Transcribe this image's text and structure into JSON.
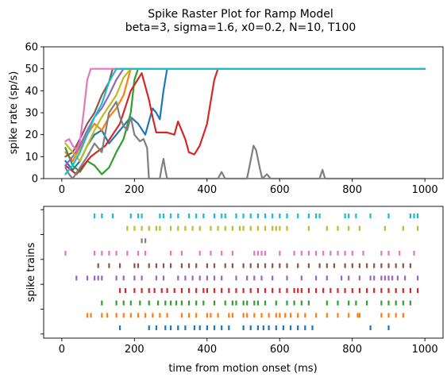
{
  "title_line1": "Spike Raster Plot for Ramp Model",
  "title_line2": "beta=3, sigma=1.6, x0=0.2, N=10, T100",
  "chart_data": [
    {
      "type": "line",
      "ylabel": "spike rate (sp/s)",
      "xlabel": "",
      "xlim": [
        -50,
        1050
      ],
      "ylim": [
        0,
        60
      ],
      "xticks": [
        "0",
        "200",
        "400",
        "600",
        "800",
        "1000"
      ],
      "yticks": [
        "0",
        "10",
        "20",
        "30",
        "40",
        "50",
        "60"
      ],
      "grid": false,
      "series": [
        {
          "color": "#1f77b4",
          "points": [
            [
              10,
              8
            ],
            [
              30,
              4
            ],
            [
              50,
              8
            ],
            [
              70,
              15
            ],
            [
              90,
              20
            ],
            [
              110,
              22
            ],
            [
              130,
              16
            ],
            [
              150,
              20
            ],
            [
              170,
              24
            ],
            [
              190,
              28
            ],
            [
              210,
              25
            ],
            [
              230,
              20
            ],
            [
              250,
              32
            ],
            [
              260,
              30
            ],
            [
              270,
              27
            ],
            [
              280,
              40
            ],
            [
              290,
              50
            ],
            [
              1000,
              50
            ]
          ]
        },
        {
          "color": "#ff7f0e",
          "points": [
            [
              10,
              12
            ],
            [
              30,
              8
            ],
            [
              50,
              14
            ],
            [
              70,
              20
            ],
            [
              90,
              25
            ],
            [
              110,
              22
            ],
            [
              130,
              28
            ],
            [
              150,
              32
            ],
            [
              170,
              38
            ],
            [
              190,
              50
            ],
            [
              1000,
              50
            ]
          ]
        },
        {
          "color": "#2ca02c",
          "points": [
            [
              10,
              14
            ],
            [
              30,
              6
            ],
            [
              50,
              3
            ],
            [
              70,
              8
            ],
            [
              90,
              6
            ],
            [
              110,
              2
            ],
            [
              130,
              5
            ],
            [
              150,
              12
            ],
            [
              170,
              18
            ],
            [
              190,
              30
            ],
            [
              200,
              45
            ],
            [
              210,
              50
            ],
            [
              1000,
              50
            ]
          ]
        },
        {
          "color": "#d62728",
          "points": [
            [
              10,
              6
            ],
            [
              40,
              2
            ],
            [
              80,
              10
            ],
            [
              120,
              15
            ],
            [
              160,
              25
            ],
            [
              190,
              40
            ],
            [
              220,
              48
            ],
            [
              240,
              36
            ],
            [
              250,
              28
            ],
            [
              260,
              21
            ],
            [
              290,
              21
            ],
            [
              310,
              20
            ],
            [
              320,
              26
            ],
            [
              340,
              18
            ],
            [
              350,
              12
            ],
            [
              365,
              11
            ],
            [
              380,
              15
            ],
            [
              390,
              20
            ],
            [
              400,
              25
            ],
            [
              410,
              35
            ],
            [
              420,
              45
            ],
            [
              430,
              50
            ],
            [
              1000,
              50
            ]
          ]
        },
        {
          "color": "#9467bd",
          "points": [
            [
              10,
              6
            ],
            [
              30,
              10
            ],
            [
              50,
              15
            ],
            [
              70,
              22
            ],
            [
              90,
              28
            ],
            [
              110,
              32
            ],
            [
              130,
              38
            ],
            [
              150,
              45
            ],
            [
              170,
              50
            ],
            [
              1000,
              50
            ]
          ]
        },
        {
          "color": "#8c564b",
          "points": [
            [
              10,
              10
            ],
            [
              30,
              12
            ],
            [
              50,
              18
            ],
            [
              70,
              25
            ],
            [
              90,
              30
            ],
            [
              110,
              38
            ],
            [
              130,
              44
            ],
            [
              140,
              50
            ],
            [
              1000,
              50
            ]
          ]
        },
        {
          "color": "#e377c2",
          "points": [
            [
              10,
              17
            ],
            [
              20,
              18
            ],
            [
              30,
              15
            ],
            [
              40,
              13
            ],
            [
              50,
              17
            ],
            [
              60,
              30
            ],
            [
              70,
              45
            ],
            [
              80,
              50
            ],
            [
              1000,
              50
            ]
          ]
        },
        {
          "color": "#7f7f7f",
          "points": [
            [
              10,
              5
            ],
            [
              20,
              2
            ],
            [
              30,
              0
            ],
            [
              50,
              5
            ],
            [
              70,
              10
            ],
            [
              90,
              16
            ],
            [
              110,
              12
            ],
            [
              130,
              30
            ],
            [
              150,
              35
            ],
            [
              160,
              28
            ],
            [
              170,
              24
            ],
            [
              180,
              22
            ],
            [
              190,
              28
            ],
            [
              200,
              20
            ],
            [
              215,
              17
            ],
            [
              225,
              18
            ],
            [
              235,
              14
            ],
            [
              240,
              0
            ],
            [
              270,
              0
            ],
            [
              275,
              5
            ],
            [
              280,
              9
            ],
            [
              285,
              4
            ],
            [
              290,
              0
            ],
            [
              430,
              0
            ],
            [
              440,
              3
            ],
            [
              450,
              0
            ],
            [
              510,
              0
            ],
            [
              520,
              8
            ],
            [
              528,
              15
            ],
            [
              535,
              13
            ],
            [
              545,
              5
            ],
            [
              552,
              0
            ],
            [
              565,
              2
            ],
            [
              575,
              0
            ],
            [
              710,
              0
            ],
            [
              718,
              4
            ],
            [
              725,
              0
            ],
            [
              1000,
              0
            ]
          ]
        },
        {
          "color": "#bcbd22",
          "points": [
            [
              10,
              16
            ],
            [
              30,
              12
            ],
            [
              50,
              8
            ],
            [
              70,
              15
            ],
            [
              90,
              22
            ],
            [
              110,
              28
            ],
            [
              130,
              33
            ],
            [
              150,
              38
            ],
            [
              170,
              46
            ],
            [
              190,
              50
            ],
            [
              1000,
              50
            ]
          ]
        },
        {
          "color": "#17becf",
          "points": [
            [
              10,
              2
            ],
            [
              30,
              6
            ],
            [
              50,
              12
            ],
            [
              70,
              20
            ],
            [
              90,
              28
            ],
            [
              110,
              34
            ],
            [
              130,
              44
            ],
            [
              150,
              50
            ],
            [
              1000,
              50
            ]
          ]
        }
      ]
    },
    {
      "type": "scatter",
      "xlabel": "time from motion onset (ms)",
      "ylabel": "spike trains",
      "xlim": [
        -50,
        1050
      ],
      "ylim": [
        0,
        10
      ],
      "xticks": [
        "0",
        "200",
        "400",
        "600",
        "800",
        "1000"
      ],
      "grid": false,
      "rows": [
        {
          "trial": 0,
          "color": "#1f77b4",
          "spikes": [
            160,
            240,
            260,
            285,
            300,
            320,
            340,
            365,
            380,
            400,
            420,
            440,
            460,
            500,
            520,
            540,
            555,
            570,
            590,
            610,
            630,
            650,
            670,
            690,
            850,
            900
          ]
        },
        {
          "trial": 1,
          "color": "#ff7f0e",
          "spikes": [
            70,
            80,
            110,
            125,
            150,
            170,
            190,
            210,
            230,
            250,
            270,
            290,
            330,
            350,
            370,
            400,
            410,
            430,
            460,
            470,
            500,
            510,
            530,
            550,
            570,
            590,
            600,
            615,
            630,
            650,
            670,
            700,
            730,
            760,
            790,
            815,
            820,
            880,
            900,
            920,
            940
          ]
        },
        {
          "trial": 2,
          "color": "#2ca02c",
          "spikes": [
            110,
            150,
            170,
            190,
            215,
            240,
            265,
            285,
            300,
            315,
            330,
            350,
            370,
            390,
            420,
            450,
            470,
            480,
            500,
            510,
            530,
            540,
            560,
            590,
            620,
            640,
            660,
            680,
            730,
            760,
            790,
            810,
            840,
            880,
            900,
            920,
            940,
            960
          ]
        },
        {
          "trial": 3,
          "color": "#d62728",
          "spikes": [
            160,
            175,
            200,
            220,
            240,
            255,
            275,
            290,
            310,
            330,
            350,
            370,
            390,
            400,
            420,
            440,
            460,
            480,
            500,
            520,
            540,
            560,
            580,
            600,
            620,
            640,
            650,
            660,
            680,
            700,
            720,
            740,
            760,
            780,
            800,
            820,
            840,
            860,
            880,
            900,
            920,
            940,
            960,
            980
          ]
        },
        {
          "trial": 4,
          "color": "#9467bd",
          "spikes": [
            40,
            70,
            90,
            100,
            110,
            150,
            170,
            200,
            220,
            260,
            280,
            320,
            340,
            360,
            380,
            400,
            420,
            440,
            480,
            510,
            530,
            550,
            580,
            620,
            660,
            700,
            730,
            770,
            790,
            820,
            850,
            860,
            880,
            890,
            900,
            910,
            925,
            945,
            980
          ]
        },
        {
          "trial": 5,
          "color": "#8c564b",
          "spikes": [
            100,
            130,
            160,
            200,
            210,
            240,
            260,
            280,
            300,
            330,
            350,
            370,
            400,
            420,
            450,
            470,
            500,
            520,
            540,
            560,
            580,
            600,
            620,
            650,
            680,
            710,
            730,
            750,
            780,
            800,
            820,
            840,
            860,
            880,
            900,
            920,
            940,
            960
          ]
        },
        {
          "trial": 6,
          "color": "#e377c2",
          "spikes": [
            10,
            90,
            110,
            130,
            150,
            180,
            210,
            230,
            300,
            330,
            380,
            410,
            440,
            470,
            530,
            540,
            550,
            560,
            600,
            640,
            660,
            680,
            700,
            720,
            740,
            760,
            780,
            800,
            830,
            880,
            900,
            930,
            970
          ]
        },
        {
          "trial": 7,
          "color": "#7f7f7f",
          "spikes": [
            220,
            230
          ]
        },
        {
          "trial": 8,
          "color": "#bcbd22",
          "spikes": [
            180,
            200,
            220,
            240,
            260,
            270,
            300,
            320,
            340,
            360,
            380,
            410,
            430,
            450,
            470,
            490,
            500,
            520,
            540,
            560,
            580,
            590,
            600,
            620,
            680,
            730,
            760,
            790,
            820,
            890,
            940,
            980
          ]
        },
        {
          "trial": 9,
          "color": "#17becf",
          "spikes": [
            90,
            110,
            140,
            190,
            210,
            220,
            270,
            280,
            300,
            320,
            350,
            370,
            390,
            420,
            440,
            450,
            480,
            500,
            520,
            540,
            560,
            580,
            600,
            620,
            650,
            680,
            700,
            710,
            780,
            790,
            810,
            850,
            900,
            960,
            970,
            980
          ]
        }
      ]
    }
  ]
}
